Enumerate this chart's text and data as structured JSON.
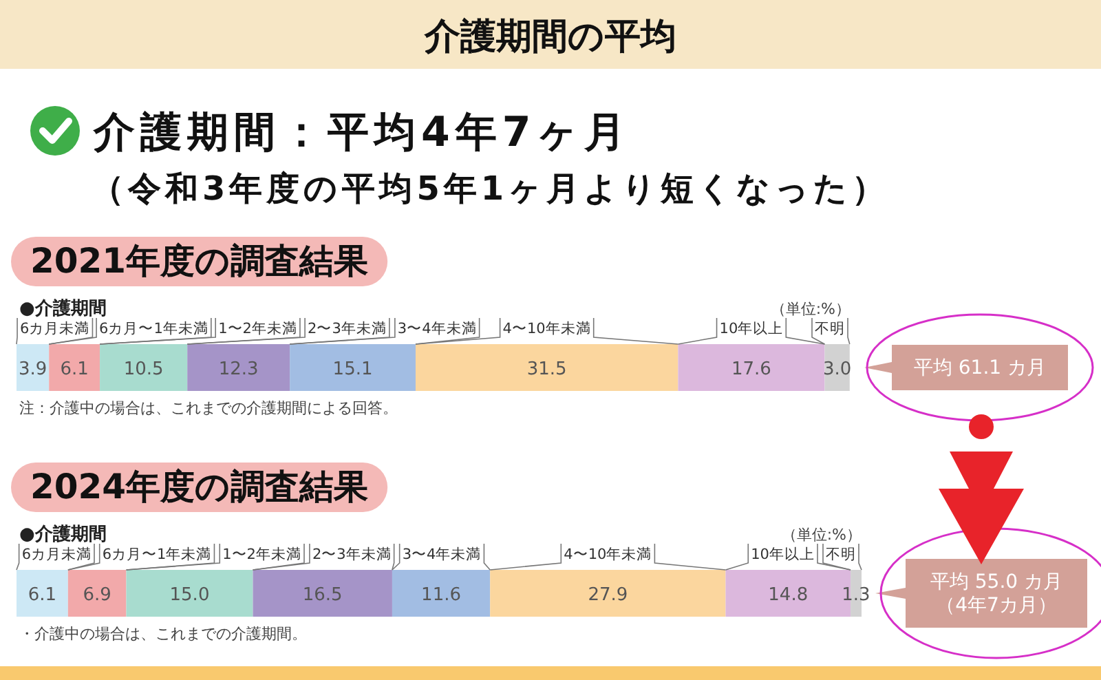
{
  "chart_data": [
    {
      "type": "other",
      "title": "介護期間の平均",
      "annotations": [
        "介護期間：平均4年7ヶ月",
        "（令和3年度の平均5年1ヶ月より短くなった）"
      ]
    },
    {
      "type": "bar",
      "orientation": "horizontal",
      "stacked": true,
      "title": "2021年度の調査結果",
      "subtitle": "●介護期間",
      "xlim": [
        0,
        100.1
      ],
      "categories": [
        null
      ],
      "annotations": [
        "（単位:%）",
        "注：介護中の場合は、これまでの介護期間による回答。",
        "平均 61.1 カ月"
      ],
      "series": [
        {
          "name": "6カ月未満",
          "color": "#cde8f5",
          "values": [
            3.9
          ],
          "value_labels": [
            "3.9"
          ]
        },
        {
          "name": "6カ月〜1年未満",
          "color": "#f2a9aa",
          "values": [
            6.1
          ],
          "value_labels": [
            "6.1"
          ]
        },
        {
          "name": "1〜2年未満",
          "color": "#a8dccf",
          "values": [
            10.5
          ],
          "value_labels": [
            "10.5"
          ]
        },
        {
          "name": "2〜3年未満",
          "color": "#a594c8",
          "values": [
            12.3
          ],
          "value_labels": [
            "12.3"
          ]
        },
        {
          "name": "3〜4年未満",
          "color": "#a2bde3",
          "values": [
            15.1
          ],
          "value_labels": [
            "15.1"
          ]
        },
        {
          "name": "4〜10年未満",
          "color": "#fbd69e",
          "values": [
            31.5
          ],
          "value_labels": [
            "31.5"
          ]
        },
        {
          "name": "10年以上",
          "color": "#dcb8dd",
          "values": [
            17.6
          ],
          "value_labels": [
            "17.6"
          ]
        },
        {
          "name": "不明",
          "color": "#d2d2d2",
          "values": [
            3.0
          ],
          "value_labels": [
            "3.0"
          ]
        }
      ]
    },
    {
      "type": "bar",
      "orientation": "horizontal",
      "stacked": true,
      "title": "2024年度の調査結果",
      "subtitle": "●介護期間",
      "xlim": [
        0,
        100.1
      ],
      "categories": [
        null
      ],
      "annotations": [
        "（単位:%）",
        "・介護中の場合は、これまでの介護期間。",
        "平均 55.0 カ月",
        "（4年7カ月）"
      ],
      "series": [
        {
          "name": "6カ月未満",
          "color": "#cde8f5",
          "values": [
            6.1
          ],
          "value_labels": [
            "6.1"
          ]
        },
        {
          "name": "6カ月〜1年未満",
          "color": "#f2a9aa",
          "values": [
            6.9
          ],
          "value_labels": [
            "6.9"
          ]
        },
        {
          "name": "1〜2年未満",
          "color": "#a8dccf",
          "values": [
            15.0
          ],
          "value_labels": [
            "15.0"
          ]
        },
        {
          "name": "2〜3年未満",
          "color": "#a594c8",
          "values": [
            16.5
          ],
          "value_labels": [
            "16.5"
          ]
        },
        {
          "name": "3〜4年未満",
          "color": "#a2bde3",
          "values": [
            11.6
          ],
          "value_labels": [
            "11.6"
          ]
        },
        {
          "name": "4〜10年未満",
          "color": "#fbd69e",
          "values": [
            27.9
          ],
          "value_labels": [
            "27.9"
          ]
        },
        {
          "name": "10年以上",
          "color": "#dcb8dd",
          "values": [
            14.8
          ],
          "value_labels": [
            "14.8"
          ]
        },
        {
          "name": "不明",
          "color": "#d2d2d2",
          "values": [
            1.3
          ],
          "value_labels": [
            "1.3"
          ]
        }
      ]
    }
  ]
}
